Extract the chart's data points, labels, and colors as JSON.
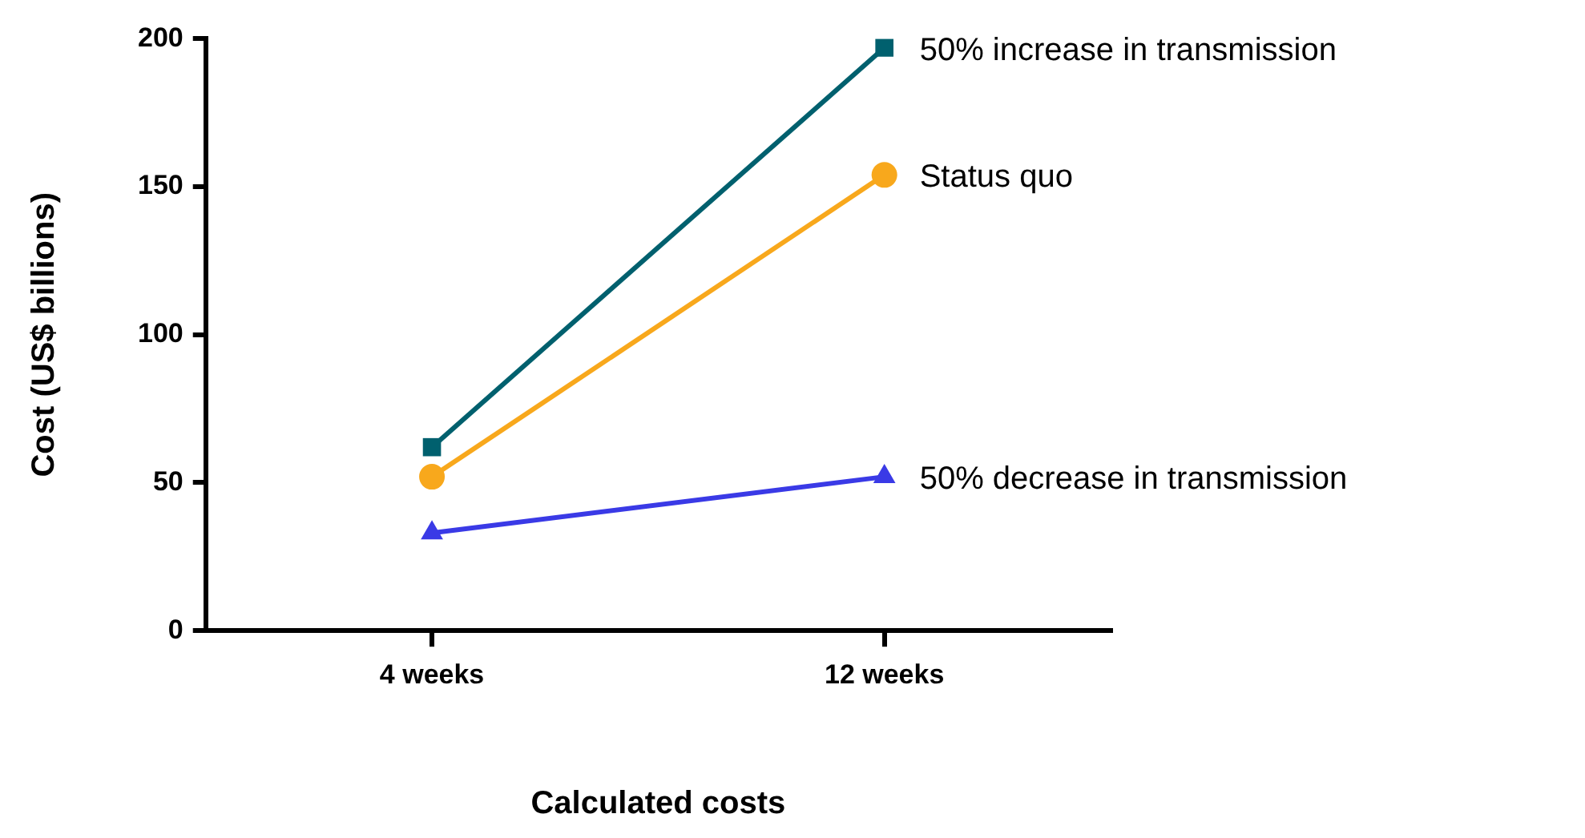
{
  "chart_data": {
    "type": "line",
    "xlabel": "Calculated costs",
    "ylabel": "Cost (US$ billions)",
    "categories": [
      "4 weeks",
      "12 weeks"
    ],
    "series": [
      {
        "name": "50% increase in transmission",
        "color": "#00606e",
        "marker": "square",
        "values": [
          62,
          197
        ]
      },
      {
        "name": "Status quo",
        "color": "#f8a81c",
        "marker": "circle",
        "values": [
          52,
          154
        ]
      },
      {
        "name": "50% decrease in transmission",
        "color": "#3a3ae6",
        "marker": "triangle",
        "values": [
          33,
          52
        ]
      }
    ],
    "ylim": [
      0,
      200
    ],
    "yticks": [
      0,
      50,
      100,
      150,
      200
    ],
    "grid": false,
    "legend": false,
    "line_style": "solid"
  }
}
